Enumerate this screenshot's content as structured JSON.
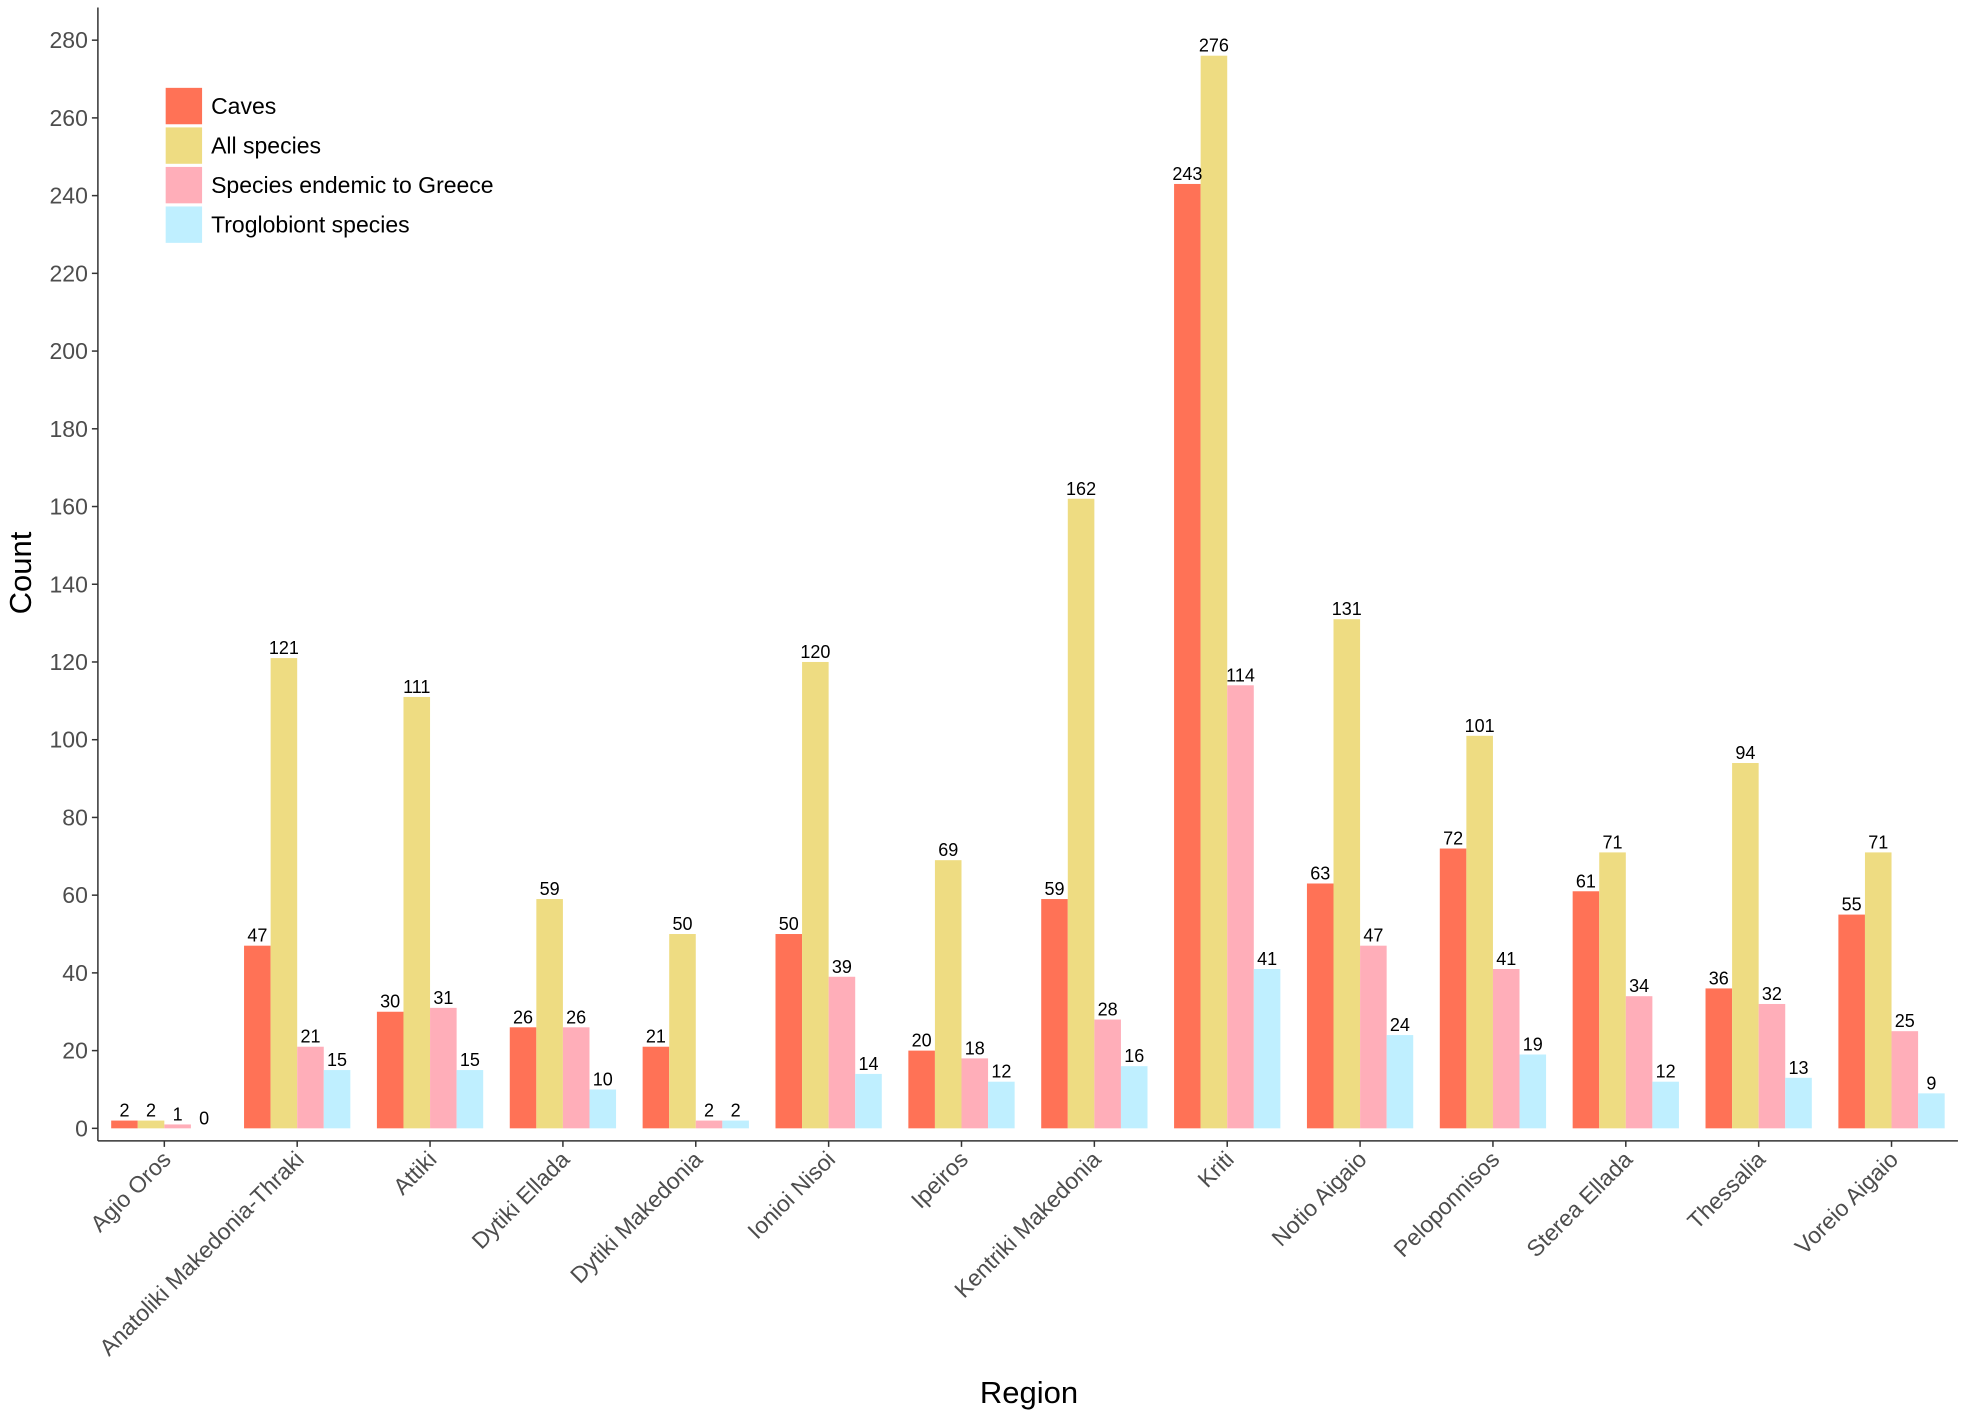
{
  "chart_data": {
    "type": "bar",
    "xlabel": "Region",
    "ylabel": "Count",
    "ylim": [
      0,
      280
    ],
    "ytick_step": 20,
    "grid": false,
    "legend_position": "top-left",
    "categories": [
      "Agio Oros",
      "Anatoliki Makedonia-Thraki",
      "Attiki",
      "Dytiki Ellada",
      "Dytiki Makedonia",
      "Ionioi Nisoi",
      "Ipeiros",
      "Kentriki Makedonia",
      "Kriti",
      "Notio Aigaio",
      "Peloponnisos",
      "Sterea Ellada",
      "Thessalia",
      "Voreio Aigaio"
    ],
    "series": [
      {
        "name": "Caves",
        "color": "#FF7256",
        "values": [
          2,
          47,
          30,
          26,
          21,
          50,
          20,
          59,
          243,
          63,
          72,
          61,
          36,
          55
        ]
      },
      {
        "name": "All species",
        "color": "#EEDC82",
        "values": [
          2,
          121,
          111,
          59,
          50,
          120,
          69,
          162,
          276,
          131,
          101,
          71,
          94,
          71
        ]
      },
      {
        "name": "Species endemic to Greece",
        "color": "#FFAEB9",
        "values": [
          1,
          21,
          31,
          26,
          2,
          39,
          18,
          28,
          114,
          47,
          41,
          34,
          32,
          25
        ]
      },
      {
        "name": "Troglobiont species",
        "color": "#BFEFFF",
        "values": [
          0,
          15,
          15,
          10,
          2,
          14,
          12,
          16,
          41,
          24,
          19,
          12,
          13,
          9
        ]
      }
    ]
  }
}
